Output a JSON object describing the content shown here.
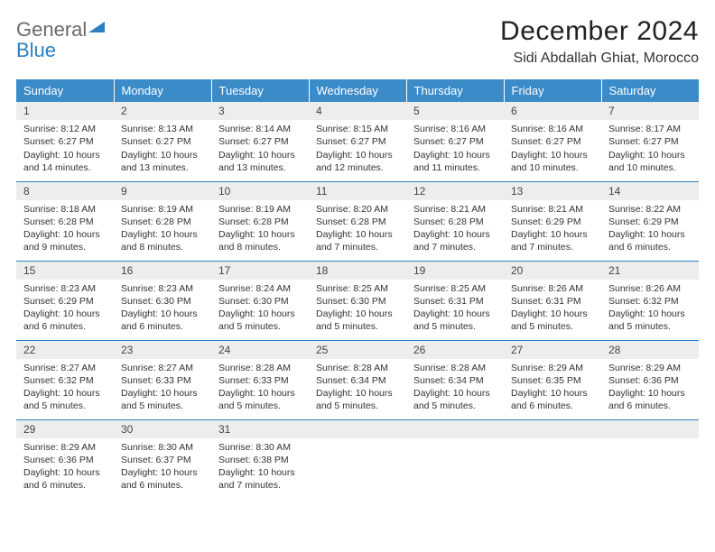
{
  "brand": {
    "word1": "General",
    "word2": "Blue",
    "word1_color": "#6a6a6a",
    "word2_color": "#2d7fc1",
    "triangle_color": "#2d7fc1"
  },
  "title": "December 2024",
  "location": "Sidi Abdallah Ghiat, Morocco",
  "header_bg": "#3b8bc9",
  "header_fg": "#ffffff",
  "daynum_bg": "#eceded",
  "cell_border": "#2d7fc1",
  "days_of_week": [
    "Sunday",
    "Monday",
    "Tuesday",
    "Wednesday",
    "Thursday",
    "Friday",
    "Saturday"
  ],
  "weeks": [
    [
      {
        "n": "1",
        "sunrise": "Sunrise: 8:12 AM",
        "sunset": "Sunset: 6:27 PM",
        "day": "Daylight: 10 hours and 14 minutes."
      },
      {
        "n": "2",
        "sunrise": "Sunrise: 8:13 AM",
        "sunset": "Sunset: 6:27 PM",
        "day": "Daylight: 10 hours and 13 minutes."
      },
      {
        "n": "3",
        "sunrise": "Sunrise: 8:14 AM",
        "sunset": "Sunset: 6:27 PM",
        "day": "Daylight: 10 hours and 13 minutes."
      },
      {
        "n": "4",
        "sunrise": "Sunrise: 8:15 AM",
        "sunset": "Sunset: 6:27 PM",
        "day": "Daylight: 10 hours and 12 minutes."
      },
      {
        "n": "5",
        "sunrise": "Sunrise: 8:16 AM",
        "sunset": "Sunset: 6:27 PM",
        "day": "Daylight: 10 hours and 11 minutes."
      },
      {
        "n": "6",
        "sunrise": "Sunrise: 8:16 AM",
        "sunset": "Sunset: 6:27 PM",
        "day": "Daylight: 10 hours and 10 minutes."
      },
      {
        "n": "7",
        "sunrise": "Sunrise: 8:17 AM",
        "sunset": "Sunset: 6:27 PM",
        "day": "Daylight: 10 hours and 10 minutes."
      }
    ],
    [
      {
        "n": "8",
        "sunrise": "Sunrise: 8:18 AM",
        "sunset": "Sunset: 6:28 PM",
        "day": "Daylight: 10 hours and 9 minutes."
      },
      {
        "n": "9",
        "sunrise": "Sunrise: 8:19 AM",
        "sunset": "Sunset: 6:28 PM",
        "day": "Daylight: 10 hours and 8 minutes."
      },
      {
        "n": "10",
        "sunrise": "Sunrise: 8:19 AM",
        "sunset": "Sunset: 6:28 PM",
        "day": "Daylight: 10 hours and 8 minutes."
      },
      {
        "n": "11",
        "sunrise": "Sunrise: 8:20 AM",
        "sunset": "Sunset: 6:28 PM",
        "day": "Daylight: 10 hours and 7 minutes."
      },
      {
        "n": "12",
        "sunrise": "Sunrise: 8:21 AM",
        "sunset": "Sunset: 6:28 PM",
        "day": "Daylight: 10 hours and 7 minutes."
      },
      {
        "n": "13",
        "sunrise": "Sunrise: 8:21 AM",
        "sunset": "Sunset: 6:29 PM",
        "day": "Daylight: 10 hours and 7 minutes."
      },
      {
        "n": "14",
        "sunrise": "Sunrise: 8:22 AM",
        "sunset": "Sunset: 6:29 PM",
        "day": "Daylight: 10 hours and 6 minutes."
      }
    ],
    [
      {
        "n": "15",
        "sunrise": "Sunrise: 8:23 AM",
        "sunset": "Sunset: 6:29 PM",
        "day": "Daylight: 10 hours and 6 minutes."
      },
      {
        "n": "16",
        "sunrise": "Sunrise: 8:23 AM",
        "sunset": "Sunset: 6:30 PM",
        "day": "Daylight: 10 hours and 6 minutes."
      },
      {
        "n": "17",
        "sunrise": "Sunrise: 8:24 AM",
        "sunset": "Sunset: 6:30 PM",
        "day": "Daylight: 10 hours and 5 minutes."
      },
      {
        "n": "18",
        "sunrise": "Sunrise: 8:25 AM",
        "sunset": "Sunset: 6:30 PM",
        "day": "Daylight: 10 hours and 5 minutes."
      },
      {
        "n": "19",
        "sunrise": "Sunrise: 8:25 AM",
        "sunset": "Sunset: 6:31 PM",
        "day": "Daylight: 10 hours and 5 minutes."
      },
      {
        "n": "20",
        "sunrise": "Sunrise: 8:26 AM",
        "sunset": "Sunset: 6:31 PM",
        "day": "Daylight: 10 hours and 5 minutes."
      },
      {
        "n": "21",
        "sunrise": "Sunrise: 8:26 AM",
        "sunset": "Sunset: 6:32 PM",
        "day": "Daylight: 10 hours and 5 minutes."
      }
    ],
    [
      {
        "n": "22",
        "sunrise": "Sunrise: 8:27 AM",
        "sunset": "Sunset: 6:32 PM",
        "day": "Daylight: 10 hours and 5 minutes."
      },
      {
        "n": "23",
        "sunrise": "Sunrise: 8:27 AM",
        "sunset": "Sunset: 6:33 PM",
        "day": "Daylight: 10 hours and 5 minutes."
      },
      {
        "n": "24",
        "sunrise": "Sunrise: 8:28 AM",
        "sunset": "Sunset: 6:33 PM",
        "day": "Daylight: 10 hours and 5 minutes."
      },
      {
        "n": "25",
        "sunrise": "Sunrise: 8:28 AM",
        "sunset": "Sunset: 6:34 PM",
        "day": "Daylight: 10 hours and 5 minutes."
      },
      {
        "n": "26",
        "sunrise": "Sunrise: 8:28 AM",
        "sunset": "Sunset: 6:34 PM",
        "day": "Daylight: 10 hours and 5 minutes."
      },
      {
        "n": "27",
        "sunrise": "Sunrise: 8:29 AM",
        "sunset": "Sunset: 6:35 PM",
        "day": "Daylight: 10 hours and 6 minutes."
      },
      {
        "n": "28",
        "sunrise": "Sunrise: 8:29 AM",
        "sunset": "Sunset: 6:36 PM",
        "day": "Daylight: 10 hours and 6 minutes."
      }
    ],
    [
      {
        "n": "29",
        "sunrise": "Sunrise: 8:29 AM",
        "sunset": "Sunset: 6:36 PM",
        "day": "Daylight: 10 hours and 6 minutes."
      },
      {
        "n": "30",
        "sunrise": "Sunrise: 8:30 AM",
        "sunset": "Sunset: 6:37 PM",
        "day": "Daylight: 10 hours and 6 minutes."
      },
      {
        "n": "31",
        "sunrise": "Sunrise: 8:30 AM",
        "sunset": "Sunset: 6:38 PM",
        "day": "Daylight: 10 hours and 7 minutes."
      },
      null,
      null,
      null,
      null
    ]
  ]
}
